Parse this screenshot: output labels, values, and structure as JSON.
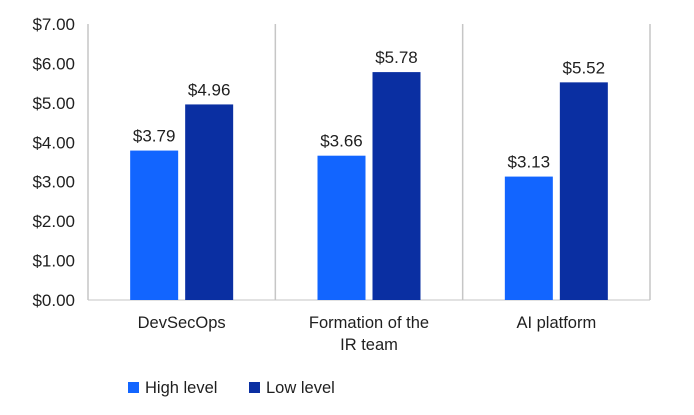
{
  "chart_data": {
    "type": "bar",
    "categories": [
      [
        "DevSecOps"
      ],
      [
        "Formation of the",
        "IR team"
      ],
      [
        "AI platform"
      ]
    ],
    "series": [
      {
        "name": "High level",
        "values": [
          3.79,
          3.66,
          3.13
        ],
        "labels": [
          "$3.79",
          "$3.66",
          "$3.13"
        ],
        "color": "#1265ff"
      },
      {
        "name": "Low level",
        "values": [
          4.96,
          5.78,
          5.52
        ],
        "labels": [
          "$4.96",
          "$5.78",
          "$5.52"
        ],
        "color": "#0a2fa2"
      }
    ],
    "yticks": [
      0,
      1,
      2,
      3,
      4,
      5,
      6,
      7
    ],
    "ytick_labels": [
      "$0.00",
      "$1.00",
      "$2.00",
      "$3.00",
      "$4.00",
      "$5.00",
      "$6.00",
      "$7.00"
    ],
    "ylim": [
      0,
      7
    ],
    "title": "",
    "xlabel": "",
    "ylabel": "",
    "grid": false,
    "legend_position": "bottom-left",
    "axis_color": "#c6c6c6"
  }
}
